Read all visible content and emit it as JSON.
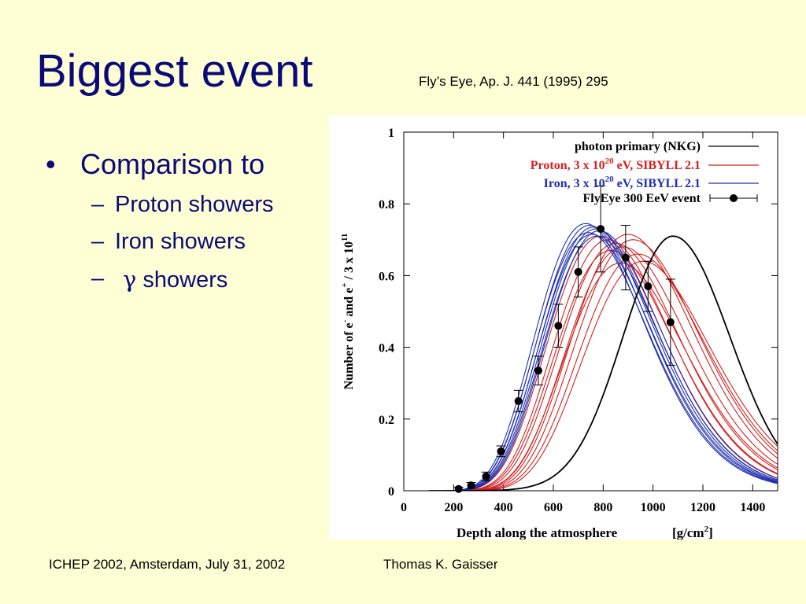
{
  "slide": {
    "title": "Biggest event",
    "citation": "Fly’s Eye, Ap. J. 441 (1995) 295",
    "bullet": "•",
    "main_bullet": "Comparison to",
    "dash": "–",
    "sub_bullets": [
      "Proton showers",
      "Iron showers",
      "showers"
    ],
    "gamma_symbol": "γ",
    "footer_left": "ICHEP 2002, Amsterdam, July 31, 2002",
    "footer_center": "Thomas K. Gaisser"
  },
  "colors": {
    "background": "#ffffd6",
    "title": "#0a0a78",
    "photon": "#000000",
    "proton": "#d42020",
    "iron": "#2030b0",
    "event": "#000000"
  },
  "chart_data": {
    "type": "line",
    "xlabel": "Depth along the atmosphere",
    "xlabel_unit_base": "[g/cm",
    "xlabel_unit_exp": "2",
    "xlabel_unit_close": "]",
    "ylabel_parts": [
      "Number of e",
      "-",
      " and e",
      "+",
      " / 3 x 10",
      "11"
    ],
    "xlim": [
      0,
      1500
    ],
    "ylim": [
      0,
      1
    ],
    "xticks": [
      0,
      200,
      400,
      600,
      800,
      1000,
      1200,
      1400
    ],
    "yticks": [
      0,
      0.2,
      0.4,
      0.6,
      0.8,
      1
    ],
    "ytick_labels": [
      "0",
      "0.2",
      "0.4",
      "0.6",
      "0.8",
      "1"
    ],
    "legend": {
      "position": "top-right",
      "entries": [
        {
          "parts": [
            "photon primary (NKG)"
          ],
          "color": "#000000"
        },
        {
          "parts": [
            "Proton, 3 x 10",
            "20",
            " eV, SIBYLL 2.1"
          ],
          "color": "#d42020"
        },
        {
          "parts": [
            "Iron, 3 x 10",
            "20",
            " eV, SIBYLL 2.1"
          ],
          "color": "#2030b0"
        },
        {
          "parts": [
            "FlyEye 300 EeV event"
          ],
          "color": "#000000"
        }
      ]
    },
    "series": [
      {
        "group": "photon",
        "model": "gaisser-hillas",
        "xmax": 1080,
        "nmax": 0.71,
        "width": 210
      },
      {
        "group": "proton",
        "model": "gaisser-hillas",
        "xmax": 790,
        "nmax": 0.71,
        "width": 195
      },
      {
        "group": "proton",
        "model": "gaisser-hillas",
        "xmax": 820,
        "nmax": 0.7,
        "width": 200
      },
      {
        "group": "proton",
        "model": "gaisser-hillas",
        "xmax": 850,
        "nmax": 0.69,
        "width": 205
      },
      {
        "group": "proton",
        "model": "gaisser-hillas",
        "xmax": 880,
        "nmax": 0.68,
        "width": 210
      },
      {
        "group": "proton",
        "model": "gaisser-hillas",
        "xmax": 900,
        "nmax": 0.715,
        "width": 200
      },
      {
        "group": "proton",
        "model": "gaisser-hillas",
        "xmax": 920,
        "nmax": 0.7,
        "width": 215
      },
      {
        "group": "proton",
        "model": "gaisser-hillas",
        "xmax": 940,
        "nmax": 0.66,
        "width": 215
      },
      {
        "group": "proton",
        "model": "gaisser-hillas",
        "xmax": 960,
        "nmax": 0.64,
        "width": 220
      },
      {
        "group": "proton",
        "model": "gaisser-hillas",
        "xmax": 870,
        "nmax": 0.635,
        "width": 200
      },
      {
        "group": "proton",
        "model": "gaisser-hillas",
        "xmax": 830,
        "nmax": 0.67,
        "width": 195
      },
      {
        "group": "iron",
        "model": "gaisser-hillas",
        "xmax": 730,
        "nmax": 0.745,
        "width": 185
      },
      {
        "group": "iron",
        "model": "gaisser-hillas",
        "xmax": 745,
        "nmax": 0.74,
        "width": 188
      },
      {
        "group": "iron",
        "model": "gaisser-hillas",
        "xmax": 760,
        "nmax": 0.735,
        "width": 190
      },
      {
        "group": "iron",
        "model": "gaisser-hillas",
        "xmax": 770,
        "nmax": 0.73,
        "width": 188
      },
      {
        "group": "iron",
        "model": "gaisser-hillas",
        "xmax": 785,
        "nmax": 0.725,
        "width": 192
      },
      {
        "group": "iron",
        "model": "gaisser-hillas",
        "xmax": 740,
        "nmax": 0.72,
        "width": 186
      },
      {
        "group": "iron",
        "model": "gaisser-hillas",
        "xmax": 755,
        "nmax": 0.715,
        "width": 190
      },
      {
        "group": "iron",
        "model": "gaisser-hillas",
        "xmax": 775,
        "nmax": 0.71,
        "width": 192
      }
    ],
    "event_points": [
      {
        "x": 220,
        "y": 0.005,
        "err": 0.005
      },
      {
        "x": 270,
        "y": 0.015,
        "err": 0.008
      },
      {
        "x": 330,
        "y": 0.04,
        "err": 0.012
      },
      {
        "x": 390,
        "y": 0.11,
        "err": 0.015
      },
      {
        "x": 460,
        "y": 0.25,
        "err": 0.03
      },
      {
        "x": 540,
        "y": 0.335,
        "err": 0.04
      },
      {
        "x": 620,
        "y": 0.46,
        "err": 0.06
      },
      {
        "x": 700,
        "y": 0.61,
        "err": 0.07
      },
      {
        "x": 790,
        "y": 0.73,
        "err": 0.12
      },
      {
        "x": 890,
        "y": 0.65,
        "err": 0.09
      },
      {
        "x": 980,
        "y": 0.57,
        "err": 0.07
      },
      {
        "x": 1070,
        "y": 0.47,
        "err": 0.12
      }
    ]
  }
}
